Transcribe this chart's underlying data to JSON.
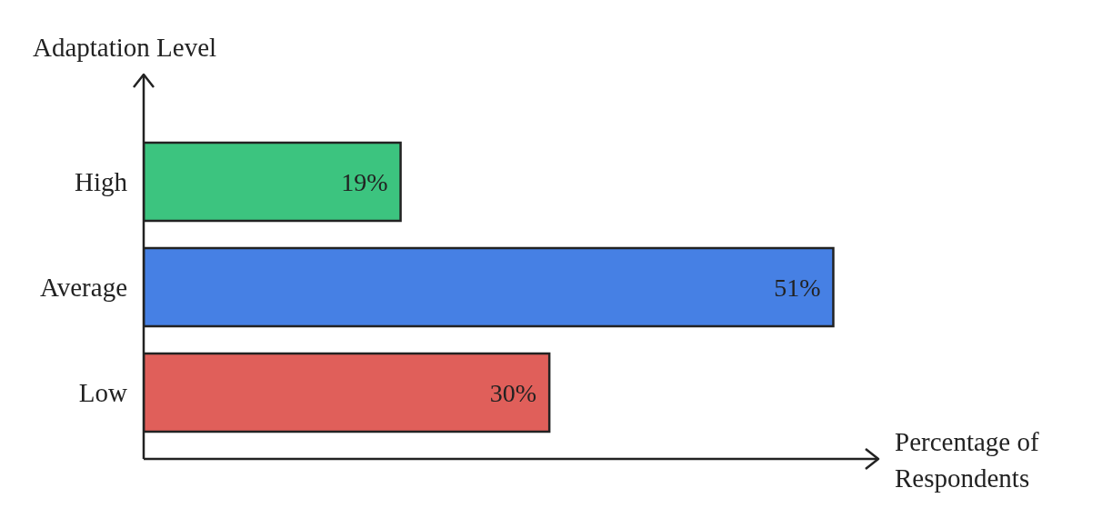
{
  "chart_data": {
    "type": "bar",
    "orientation": "horizontal",
    "ylabel": "Adaptation Level",
    "xlabel": "Percentage of Respondents",
    "categories": [
      "High",
      "Average",
      "Low"
    ],
    "values": [
      19,
      51,
      30
    ],
    "colors": [
      "#3cc47f",
      "#4680e4",
      "#e05f5a"
    ],
    "value_labels": [
      "19%",
      "51%",
      "30%"
    ],
    "grid": false,
    "legend": false
  }
}
